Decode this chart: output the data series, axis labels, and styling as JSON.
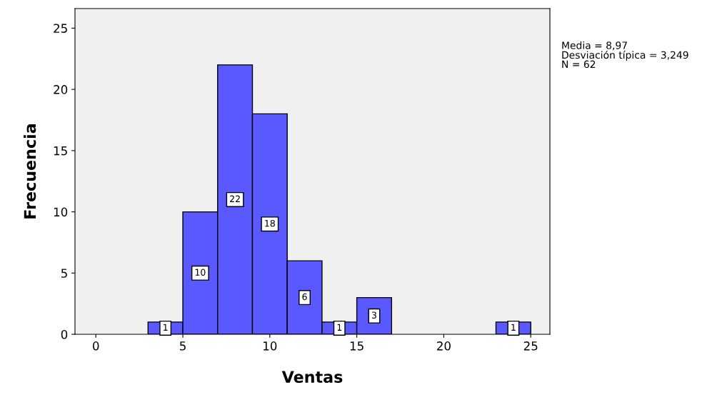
{
  "chart_data": {
    "type": "histogram",
    "xlabel": "Ventas",
    "ylabel": "Frecuencia",
    "bins": [
      3,
      5,
      7,
      9,
      11,
      13,
      15,
      17,
      19,
      21,
      23,
      25
    ],
    "values": [
      1,
      10,
      22,
      18,
      6,
      1,
      3,
      0,
      0,
      0,
      1
    ],
    "value_labels": [
      "1",
      "10",
      "22",
      "18",
      "6",
      "1",
      "3",
      null,
      null,
      null,
      "1"
    ],
    "color": "#5959ff",
    "xlim": [
      -1.2,
      26.1
    ],
    "xticks": [
      0,
      5,
      10,
      15,
      20,
      25
    ],
    "ylim": [
      0,
      26.6
    ],
    "yticks": [
      0,
      5,
      10,
      15,
      20,
      25
    ],
    "grid": false,
    "annotations": [
      "Media = 8,97",
      "Desviación típica = 3,249",
      "N = 62"
    ]
  }
}
